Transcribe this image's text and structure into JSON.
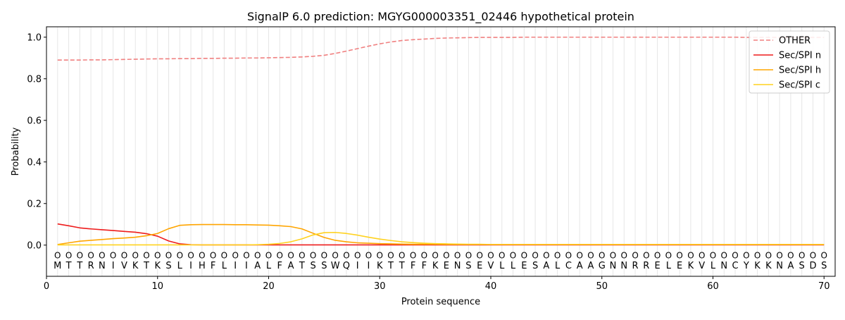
{
  "chart_data": {
    "type": "line",
    "title": "SignalP 6.0 prediction: MGYG000003351_02446 hypothetical protein",
    "xlabel": "Protein sequence",
    "ylabel": "Probability",
    "xlim": [
      0,
      71
    ],
    "ylim": [
      -0.15,
      1.05
    ],
    "x_ticks": [
      0,
      10,
      20,
      30,
      40,
      50,
      60,
      70
    ],
    "y_ticks": [
      0.0,
      0.2,
      0.4,
      0.6,
      0.8,
      1.0
    ],
    "x_tick_labels": [
      "0",
      "10",
      "20",
      "30",
      "40",
      "50",
      "60",
      "70"
    ],
    "y_tick_labels": [
      "0.0",
      "0.2",
      "0.4",
      "0.6",
      "0.8",
      "1.0"
    ],
    "grid": "vertical lines at each residue",
    "legend_position": "top-right",
    "sequence": [
      "M",
      "T",
      "T",
      "R",
      "N",
      "I",
      "V",
      "K",
      "T",
      "K",
      "S",
      "L",
      "I",
      "H",
      "F",
      "L",
      "I",
      "I",
      "A",
      "L",
      "F",
      "A",
      "T",
      "S",
      "S",
      "W",
      "Q",
      "I",
      "I",
      "K",
      "T",
      "T",
      "F",
      "F",
      "K",
      "E",
      "N",
      "S",
      "E",
      "V",
      "L",
      "L",
      "E",
      "S",
      "A",
      "L",
      "C",
      "A",
      "A",
      "G",
      "N",
      "N",
      "R",
      "R",
      "E",
      "L",
      "E",
      "K",
      "V",
      "L",
      "N",
      "C",
      "Y",
      "K",
      "K",
      "N",
      "A",
      "S",
      "D",
      "S"
    ],
    "residue_labels": [
      "O",
      "O",
      "O",
      "O",
      "O",
      "O",
      "O",
      "O",
      "O",
      "O",
      "O",
      "O",
      "O",
      "O",
      "O",
      "O",
      "O",
      "O",
      "O",
      "O",
      "O",
      "O",
      "O",
      "O",
      "O",
      "O",
      "O",
      "O",
      "O",
      "O",
      "O",
      "O",
      "O",
      "O",
      "O",
      "O",
      "O",
      "O",
      "O",
      "O",
      "O",
      "O",
      "O",
      "O",
      "O",
      "O",
      "O",
      "O",
      "O",
      "O",
      "O",
      "O",
      "O",
      "O",
      "O",
      "O",
      "O",
      "O",
      "O",
      "O",
      "O",
      "O",
      "O",
      "O",
      "O",
      "O",
      "O",
      "O",
      "O",
      "O"
    ],
    "series": [
      {
        "name": "OTHER",
        "color": "#f08080",
        "dashed": true,
        "values": [
          0.89,
          0.89,
          0.89,
          0.891,
          0.891,
          0.892,
          0.893,
          0.894,
          0.895,
          0.896,
          0.896,
          0.897,
          0.897,
          0.898,
          0.898,
          0.899,
          0.899,
          0.9,
          0.9,
          0.901,
          0.902,
          0.903,
          0.905,
          0.908,
          0.913,
          0.922,
          0.933,
          0.945,
          0.957,
          0.968,
          0.977,
          0.984,
          0.988,
          0.991,
          0.994,
          0.996,
          0.997,
          0.998,
          0.999,
          0.999,
          0.999,
          0.999,
          1.0,
          1.0,
          1.0,
          1.0,
          1.0,
          1.0,
          1.0,
          1.0,
          1.0,
          1.0,
          1.0,
          1.0,
          1.0,
          1.0,
          1.0,
          1.0,
          1.0,
          1.0,
          1.0,
          1.0,
          0.999,
          0.999,
          0.999,
          0.999,
          0.999,
          0.999,
          0.999,
          0.999
        ]
      },
      {
        "name": "Sec/SPI n",
        "color": "#ee1c1c",
        "dashed": false,
        "values": [
          0.102,
          0.093,
          0.083,
          0.078,
          0.074,
          0.07,
          0.066,
          0.062,
          0.055,
          0.043,
          0.02,
          0.006,
          0.002,
          0.001,
          0.001,
          0.001,
          0.001,
          0.001,
          0.001,
          0.001,
          0.001,
          0.001,
          0.001,
          0.001,
          0.001,
          0.001,
          0.001,
          0.001,
          0.001,
          0.001,
          0.001,
          0.001,
          0.001,
          0.001,
          0.001,
          0.001,
          0.001,
          0.001,
          0.001,
          0.001,
          0.001,
          0.001,
          0.001,
          0.001,
          0.001,
          0.001,
          0.001,
          0.001,
          0.001,
          0.001,
          0.001,
          0.001,
          0.001,
          0.001,
          0.001,
          0.001,
          0.001,
          0.001,
          0.001,
          0.001,
          0.001,
          0.001,
          0.001,
          0.001,
          0.001,
          0.001,
          0.001,
          0.001,
          0.001,
          0.001
        ]
      },
      {
        "name": "Sec/SPI h",
        "color": "#ffa500",
        "dashed": false,
        "values": [
          0.003,
          0.011,
          0.019,
          0.023,
          0.027,
          0.031,
          0.034,
          0.038,
          0.045,
          0.056,
          0.079,
          0.095,
          0.098,
          0.099,
          0.099,
          0.099,
          0.098,
          0.098,
          0.097,
          0.096,
          0.093,
          0.089,
          0.078,
          0.057,
          0.037,
          0.023,
          0.016,
          0.011,
          0.009,
          0.007,
          0.006,
          0.005,
          0.004,
          0.004,
          0.004,
          0.003,
          0.003,
          0.003,
          0.003,
          0.003,
          0.003,
          0.003,
          0.003,
          0.003,
          0.003,
          0.003,
          0.003,
          0.003,
          0.003,
          0.003,
          0.003,
          0.003,
          0.003,
          0.003,
          0.003,
          0.003,
          0.003,
          0.003,
          0.003,
          0.003,
          0.003,
          0.003,
          0.003,
          0.003,
          0.003,
          0.003,
          0.003,
          0.003,
          0.003,
          0.003
        ]
      },
      {
        "name": "Sec/SPI c",
        "color": "#ffd21f",
        "dashed": false,
        "values": [
          0.001,
          0.001,
          0.001,
          0.001,
          0.001,
          0.001,
          0.001,
          0.001,
          0.001,
          0.001,
          0.001,
          0.001,
          0.001,
          0.001,
          0.001,
          0.001,
          0.001,
          0.001,
          0.002,
          0.004,
          0.008,
          0.016,
          0.03,
          0.049,
          0.06,
          0.061,
          0.056,
          0.048,
          0.038,
          0.029,
          0.022,
          0.016,
          0.012,
          0.009,
          0.007,
          0.006,
          0.005,
          0.004,
          0.004,
          0.003,
          0.003,
          0.003,
          0.003,
          0.003,
          0.003,
          0.003,
          0.003,
          0.003,
          0.003,
          0.003,
          0.003,
          0.003,
          0.003,
          0.003,
          0.003,
          0.003,
          0.003,
          0.003,
          0.003,
          0.003,
          0.003,
          0.003,
          0.003,
          0.003,
          0.003,
          0.003,
          0.003,
          0.003,
          0.003,
          0.003
        ]
      }
    ]
  }
}
